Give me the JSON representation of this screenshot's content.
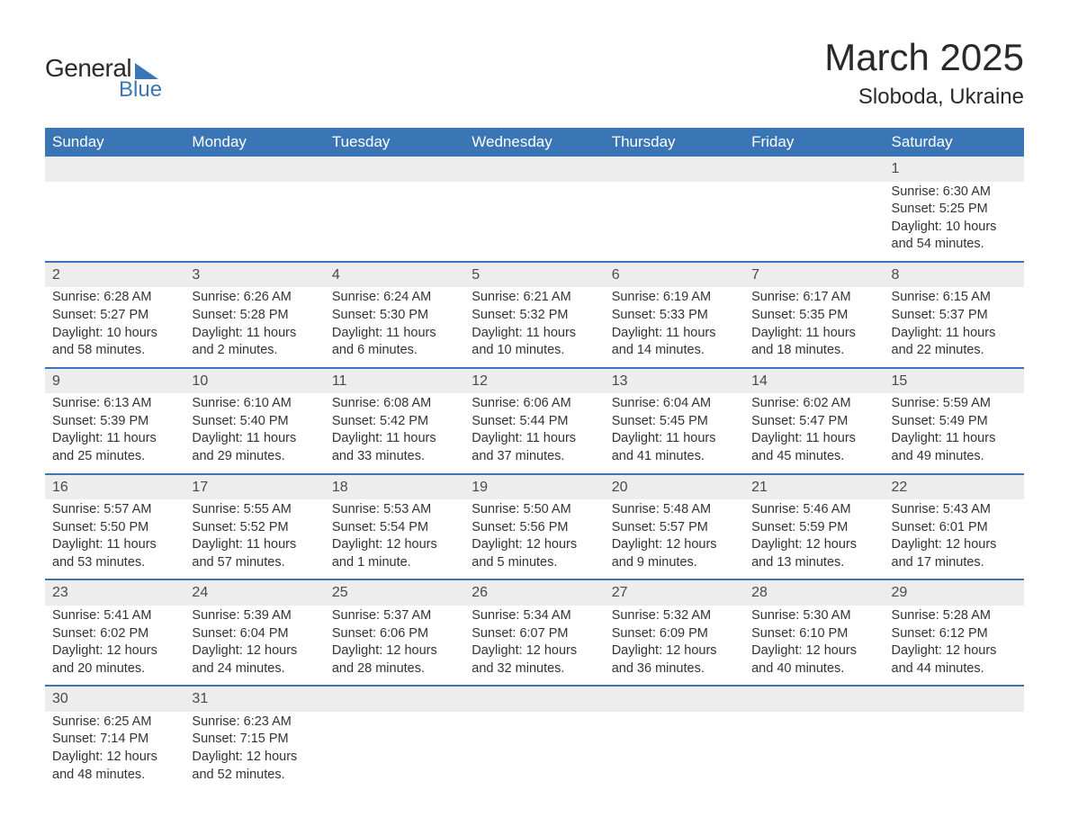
{
  "logo": {
    "top": "General",
    "bottom": "Blue"
  },
  "title": "March 2025",
  "location": "Sloboda, Ukraine",
  "weekdays": [
    "Sunday",
    "Monday",
    "Tuesday",
    "Wednesday",
    "Thursday",
    "Friday",
    "Saturday"
  ],
  "colors": {
    "header_bg": "#3a76b6",
    "header_text": "#ffffff",
    "row_border": "#3a76b6",
    "daynum_bg": "#ededed",
    "text": "#333333",
    "page_bg": "#ffffff"
  },
  "weeks": [
    [
      null,
      null,
      null,
      null,
      null,
      null,
      {
        "num": "1",
        "sunrise": "Sunrise: 6:30 AM",
        "sunset": "Sunset: 5:25 PM",
        "daylight": "Daylight: 10 hours and 54 minutes."
      }
    ],
    [
      {
        "num": "2",
        "sunrise": "Sunrise: 6:28 AM",
        "sunset": "Sunset: 5:27 PM",
        "daylight": "Daylight: 10 hours and 58 minutes."
      },
      {
        "num": "3",
        "sunrise": "Sunrise: 6:26 AM",
        "sunset": "Sunset: 5:28 PM",
        "daylight": "Daylight: 11 hours and 2 minutes."
      },
      {
        "num": "4",
        "sunrise": "Sunrise: 6:24 AM",
        "sunset": "Sunset: 5:30 PM",
        "daylight": "Daylight: 11 hours and 6 minutes."
      },
      {
        "num": "5",
        "sunrise": "Sunrise: 6:21 AM",
        "sunset": "Sunset: 5:32 PM",
        "daylight": "Daylight: 11 hours and 10 minutes."
      },
      {
        "num": "6",
        "sunrise": "Sunrise: 6:19 AM",
        "sunset": "Sunset: 5:33 PM",
        "daylight": "Daylight: 11 hours and 14 minutes."
      },
      {
        "num": "7",
        "sunrise": "Sunrise: 6:17 AM",
        "sunset": "Sunset: 5:35 PM",
        "daylight": "Daylight: 11 hours and 18 minutes."
      },
      {
        "num": "8",
        "sunrise": "Sunrise: 6:15 AM",
        "sunset": "Sunset: 5:37 PM",
        "daylight": "Daylight: 11 hours and 22 minutes."
      }
    ],
    [
      {
        "num": "9",
        "sunrise": "Sunrise: 6:13 AM",
        "sunset": "Sunset: 5:39 PM",
        "daylight": "Daylight: 11 hours and 25 minutes."
      },
      {
        "num": "10",
        "sunrise": "Sunrise: 6:10 AM",
        "sunset": "Sunset: 5:40 PM",
        "daylight": "Daylight: 11 hours and 29 minutes."
      },
      {
        "num": "11",
        "sunrise": "Sunrise: 6:08 AM",
        "sunset": "Sunset: 5:42 PM",
        "daylight": "Daylight: 11 hours and 33 minutes."
      },
      {
        "num": "12",
        "sunrise": "Sunrise: 6:06 AM",
        "sunset": "Sunset: 5:44 PM",
        "daylight": "Daylight: 11 hours and 37 minutes."
      },
      {
        "num": "13",
        "sunrise": "Sunrise: 6:04 AM",
        "sunset": "Sunset: 5:45 PM",
        "daylight": "Daylight: 11 hours and 41 minutes."
      },
      {
        "num": "14",
        "sunrise": "Sunrise: 6:02 AM",
        "sunset": "Sunset: 5:47 PM",
        "daylight": "Daylight: 11 hours and 45 minutes."
      },
      {
        "num": "15",
        "sunrise": "Sunrise: 5:59 AM",
        "sunset": "Sunset: 5:49 PM",
        "daylight": "Daylight: 11 hours and 49 minutes."
      }
    ],
    [
      {
        "num": "16",
        "sunrise": "Sunrise: 5:57 AM",
        "sunset": "Sunset: 5:50 PM",
        "daylight": "Daylight: 11 hours and 53 minutes."
      },
      {
        "num": "17",
        "sunrise": "Sunrise: 5:55 AM",
        "sunset": "Sunset: 5:52 PM",
        "daylight": "Daylight: 11 hours and 57 minutes."
      },
      {
        "num": "18",
        "sunrise": "Sunrise: 5:53 AM",
        "sunset": "Sunset: 5:54 PM",
        "daylight": "Daylight: 12 hours and 1 minute."
      },
      {
        "num": "19",
        "sunrise": "Sunrise: 5:50 AM",
        "sunset": "Sunset: 5:56 PM",
        "daylight": "Daylight: 12 hours and 5 minutes."
      },
      {
        "num": "20",
        "sunrise": "Sunrise: 5:48 AM",
        "sunset": "Sunset: 5:57 PM",
        "daylight": "Daylight: 12 hours and 9 minutes."
      },
      {
        "num": "21",
        "sunrise": "Sunrise: 5:46 AM",
        "sunset": "Sunset: 5:59 PM",
        "daylight": "Daylight: 12 hours and 13 minutes."
      },
      {
        "num": "22",
        "sunrise": "Sunrise: 5:43 AM",
        "sunset": "Sunset: 6:01 PM",
        "daylight": "Daylight: 12 hours and 17 minutes."
      }
    ],
    [
      {
        "num": "23",
        "sunrise": "Sunrise: 5:41 AM",
        "sunset": "Sunset: 6:02 PM",
        "daylight": "Daylight: 12 hours and 20 minutes."
      },
      {
        "num": "24",
        "sunrise": "Sunrise: 5:39 AM",
        "sunset": "Sunset: 6:04 PM",
        "daylight": "Daylight: 12 hours and 24 minutes."
      },
      {
        "num": "25",
        "sunrise": "Sunrise: 5:37 AM",
        "sunset": "Sunset: 6:06 PM",
        "daylight": "Daylight: 12 hours and 28 minutes."
      },
      {
        "num": "26",
        "sunrise": "Sunrise: 5:34 AM",
        "sunset": "Sunset: 6:07 PM",
        "daylight": "Daylight: 12 hours and 32 minutes."
      },
      {
        "num": "27",
        "sunrise": "Sunrise: 5:32 AM",
        "sunset": "Sunset: 6:09 PM",
        "daylight": "Daylight: 12 hours and 36 minutes."
      },
      {
        "num": "28",
        "sunrise": "Sunrise: 5:30 AM",
        "sunset": "Sunset: 6:10 PM",
        "daylight": "Daylight: 12 hours and 40 minutes."
      },
      {
        "num": "29",
        "sunrise": "Sunrise: 5:28 AM",
        "sunset": "Sunset: 6:12 PM",
        "daylight": "Daylight: 12 hours and 44 minutes."
      }
    ],
    [
      {
        "num": "30",
        "sunrise": "Sunrise: 6:25 AM",
        "sunset": "Sunset: 7:14 PM",
        "daylight": "Daylight: 12 hours and 48 minutes."
      },
      {
        "num": "31",
        "sunrise": "Sunrise: 6:23 AM",
        "sunset": "Sunset: 7:15 PM",
        "daylight": "Daylight: 12 hours and 52 minutes."
      },
      null,
      null,
      null,
      null,
      null
    ]
  ]
}
